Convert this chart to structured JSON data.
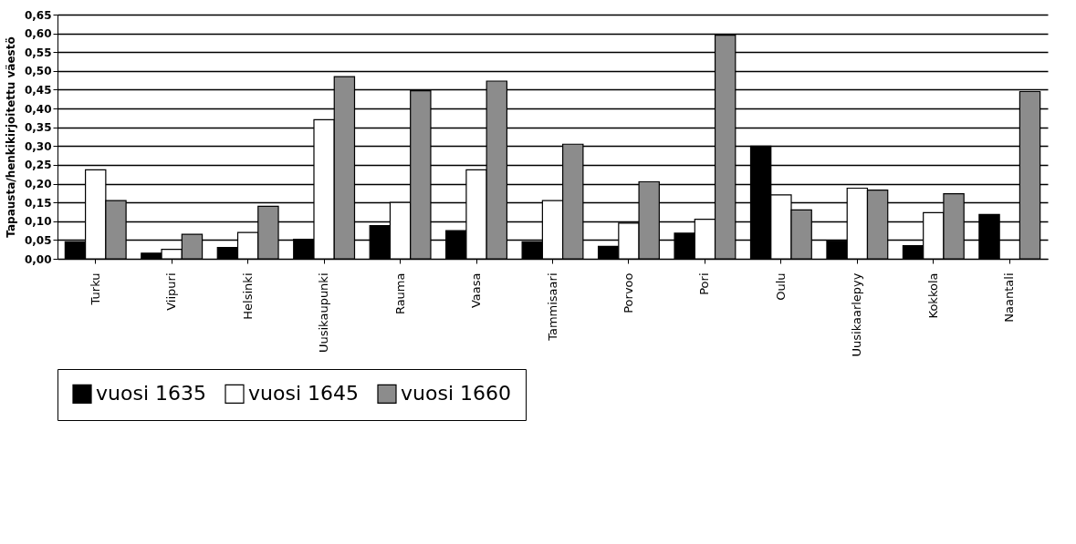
{
  "chart_data": {
    "type": "bar",
    "ylabel": "Tapausta/henkikirjoitettu väestö",
    "categories": [
      "Turku",
      "Viipuri",
      "Helsinki",
      "Uusikaupunki",
      "Rauma",
      "Vaasa",
      "Tammisaari",
      "Porvoo",
      "Pori",
      "Oulu",
      "Uusikaarlepyy",
      "Kokkola",
      "Naantali"
    ],
    "series": [
      {
        "name": "vuosi 1635",
        "color": "#000000",
        "values": [
          0.045,
          0.015,
          0.03,
          0.052,
          0.088,
          0.075,
          0.045,
          0.033,
          0.068,
          0.3,
          0.048,
          0.035,
          0.118
        ]
      },
      {
        "name": "vuosi 1645",
        "color": "#ffffff",
        "values": [
          0.237,
          0.025,
          0.07,
          0.37,
          0.15,
          0.237,
          0.155,
          0.095,
          0.105,
          0.17,
          0.188,
          0.123,
          null
        ]
      },
      {
        "name": "vuosi 1660",
        "color": "#8c8c8c",
        "values": [
          0.155,
          0.065,
          0.14,
          0.485,
          0.447,
          0.473,
          0.305,
          0.205,
          0.595,
          0.13,
          0.183,
          0.173,
          0.445
        ]
      }
    ],
    "ylim": [
      0,
      0.65
    ],
    "yticks": [
      {
        "value": 0,
        "label": "0,00"
      },
      {
        "value": 0.05,
        "label": "0,05"
      },
      {
        "value": 0.1,
        "label": "0,10"
      },
      {
        "value": 0.15,
        "label": "0,15"
      },
      {
        "value": 0.2,
        "label": "0,20"
      },
      {
        "value": 0.25,
        "label": "0,25"
      },
      {
        "value": 0.3,
        "label": "0,30"
      },
      {
        "value": 0.35,
        "label": "0,35"
      },
      {
        "value": 0.4,
        "label": "0,40"
      },
      {
        "value": 0.45,
        "label": "0,45"
      },
      {
        "value": 0.5,
        "label": "0,50"
      },
      {
        "value": 0.55,
        "label": "0,55"
      },
      {
        "value": 0.6,
        "label": "0,60"
      },
      {
        "value": 0.65,
        "label": "0,65"
      }
    ],
    "grid": "y",
    "legend": "bottom"
  }
}
